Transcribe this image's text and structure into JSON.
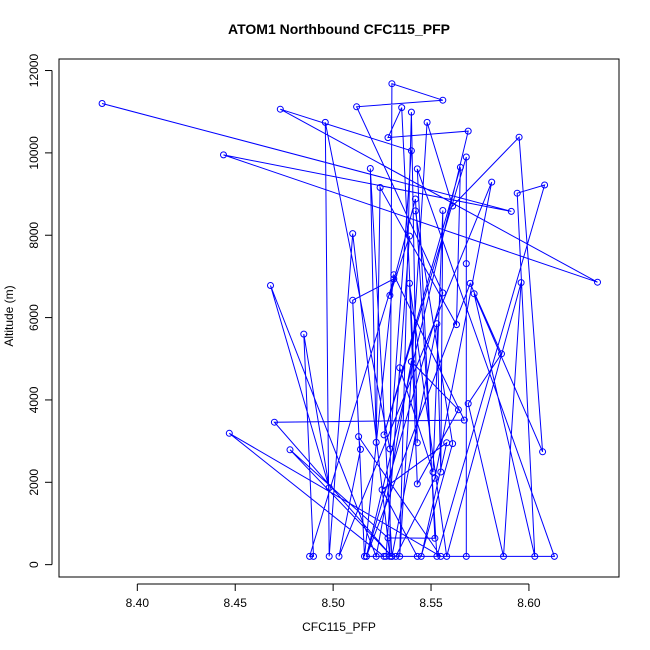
{
  "chart_data": {
    "type": "line",
    "title": "ATOM1 Northbound CFC115_PFP",
    "xlabel": "CFC115_PFP",
    "ylabel": "Altitude (m)",
    "xlim": [
      8.36,
      8.646
    ],
    "ylim": [
      -300,
      12280
    ],
    "xticks": [
      8.4,
      8.45,
      8.5,
      8.55,
      8.6
    ],
    "xtick_labels": [
      "8.40",
      "8.45",
      "8.50",
      "8.55",
      "8.60"
    ],
    "yticks": [
      0,
      2000,
      4000,
      6000,
      8000,
      10000,
      12000
    ],
    "ytick_labels": [
      "0",
      "2000",
      "4000",
      "6000",
      "8000",
      "10000",
      "12000"
    ],
    "grid": false,
    "markers": "open-circle",
    "series": [
      {
        "color": "#0000ff",
        "points": [
          [
            8.382,
            11200
          ],
          [
            8.591,
            8580
          ],
          [
            8.444,
            9950
          ],
          [
            8.635,
            6860
          ],
          [
            8.473,
            11060
          ],
          [
            8.54,
            10050
          ],
          [
            8.529,
            2810
          ],
          [
            8.496,
            10740
          ],
          [
            8.498,
            200
          ],
          [
            8.51,
            8040
          ],
          [
            8.529,
            200
          ],
          [
            8.53,
            11680
          ],
          [
            8.556,
            11280
          ],
          [
            8.512,
            11120
          ],
          [
            8.556,
            6600
          ],
          [
            8.517,
            200
          ],
          [
            8.569,
            10530
          ],
          [
            8.528,
            10370
          ],
          [
            8.535,
            11100
          ],
          [
            8.543,
            2960
          ],
          [
            8.54,
            10990
          ],
          [
            8.534,
            200
          ],
          [
            8.548,
            10740
          ],
          [
            8.561,
            8710
          ],
          [
            8.595,
            10380
          ],
          [
            8.607,
            2740
          ],
          [
            8.572,
            6580
          ],
          [
            8.603,
            200
          ],
          [
            8.594,
            9020
          ],
          [
            8.608,
            9220
          ],
          [
            8.553,
            200
          ],
          [
            8.542,
            8880
          ],
          [
            8.529,
            6540
          ],
          [
            8.539,
            7980
          ],
          [
            8.527,
            200
          ],
          [
            8.534,
            4780
          ],
          [
            8.551,
            2250
          ],
          [
            8.556,
            8600
          ],
          [
            8.555,
            2250
          ],
          [
            8.553,
            5850
          ],
          [
            8.53,
            200
          ],
          [
            8.519,
            9620
          ],
          [
            8.522,
            2970
          ],
          [
            8.524,
            9160
          ],
          [
            8.563,
            5830
          ],
          [
            8.565,
            9650
          ],
          [
            8.526,
            3150
          ],
          [
            8.568,
            9900
          ],
          [
            8.568,
            7310
          ],
          [
            8.568,
            200
          ],
          [
            8.517,
            200
          ],
          [
            8.57,
            6830
          ],
          [
            8.586,
            5120
          ],
          [
            8.569,
            3910
          ],
          [
            8.587,
            200
          ],
          [
            8.596,
            6850
          ],
          [
            8.558,
            200
          ],
          [
            8.539,
            6830
          ],
          [
            8.543,
            1960
          ],
          [
            8.564,
            3760
          ],
          [
            8.54,
            4930
          ],
          [
            8.522,
            200
          ],
          [
            8.468,
            6780
          ],
          [
            8.498,
            1870
          ],
          [
            8.485,
            5600
          ],
          [
            8.49,
            200
          ],
          [
            8.488,
            200
          ],
          [
            8.531,
            6940
          ],
          [
            8.51,
            6420
          ],
          [
            8.516,
            200
          ],
          [
            8.531,
            7040
          ],
          [
            8.567,
            3510
          ],
          [
            8.47,
            3460
          ],
          [
            8.53,
            200
          ],
          [
            8.478,
            2790
          ],
          [
            8.528,
            650
          ],
          [
            8.552,
            640
          ],
          [
            8.543,
            9610
          ],
          [
            8.613,
            200
          ],
          [
            8.532,
            200
          ],
          [
            8.552,
            2100
          ],
          [
            8.581,
            9290
          ],
          [
            8.503,
            200
          ],
          [
            8.514,
            2800
          ],
          [
            8.513,
            3110
          ],
          [
            8.555,
            200
          ],
          [
            8.447,
            3190
          ],
          [
            8.526,
            200
          ],
          [
            8.543,
            200
          ],
          [
            8.525,
            1820
          ],
          [
            8.558,
            2960
          ],
          [
            8.545,
            200
          ],
          [
            8.561,
            2940
          ],
          [
            8.542,
            8590
          ]
        ]
      }
    ]
  }
}
